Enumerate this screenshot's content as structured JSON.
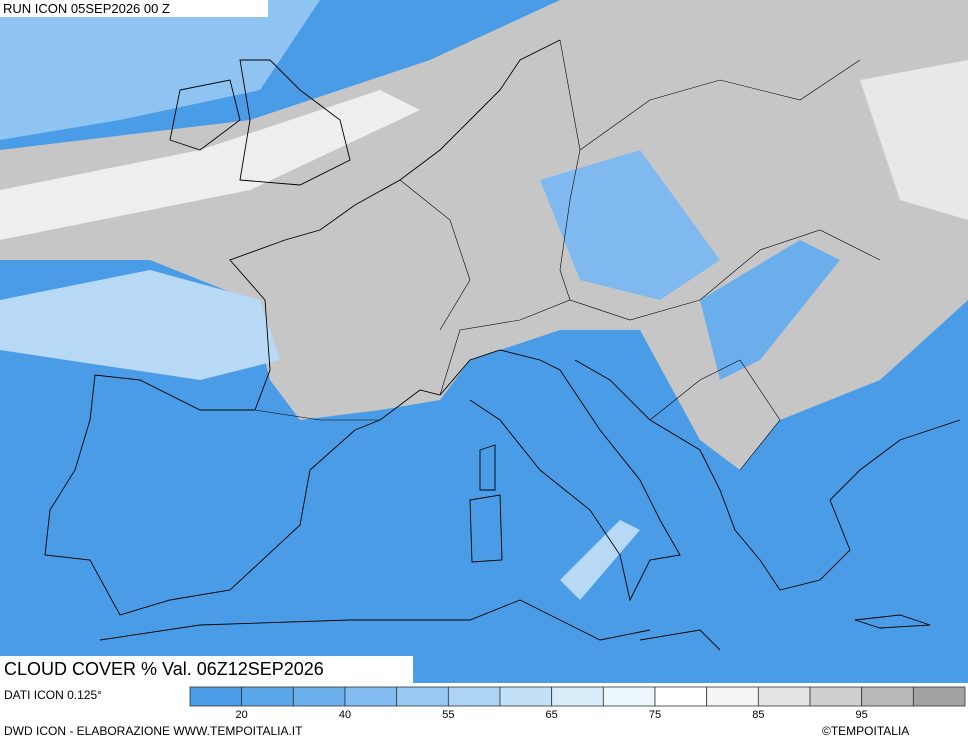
{
  "header": {
    "run": "RUN ICON 05SEP2026 00 Z",
    "title": "CLOUD COVER % Val. 06Z12SEP2026"
  },
  "legend": {
    "source": "DATI ICON 0.125°",
    "colors": [
      "#4a9ce6",
      "#5aa6ea",
      "#6db0ee",
      "#82bcf0",
      "#97c9f3",
      "#acd5f5",
      "#c2e1f8",
      "#d8edfa",
      "#ecf8fb",
      "#ffffff",
      "#f4f4f4",
      "#e4e4e4",
      "#cfcfcf",
      "#bababa",
      "#a3a3a3"
    ],
    "labels": [
      "20",
      "40",
      "55",
      "65",
      "75",
      "85",
      "95"
    ]
  },
  "footer": {
    "credit": "DWD ICON - ELABORAZIONE WWW.TEMPOITALIA.IT",
    "copyright": "©TEMPOITALIA"
  }
}
